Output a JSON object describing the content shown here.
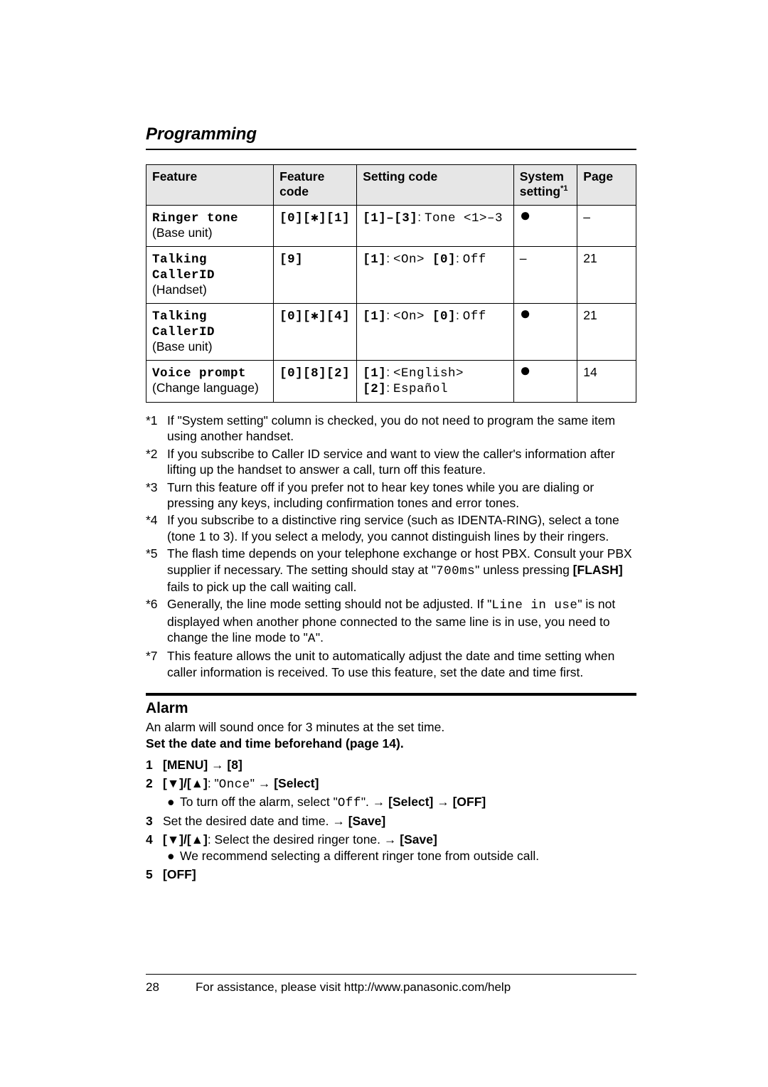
{
  "section_title": "Programming",
  "table": {
    "headers": {
      "feature": "Feature",
      "code": "Feature code",
      "setting": "Setting code",
      "system": "System setting",
      "system_sup": "*1",
      "page": "Page"
    },
    "rows": [
      {
        "feature_mono": "Ringer tone",
        "feature_sub": "(Base unit)",
        "code": "[0][✱][1]",
        "setting_a": "[1]–[3]",
        "setting_b": ": ",
        "setting_c": "Tone <1>–3",
        "system_dot": "●",
        "page": "–"
      },
      {
        "feature_mono": "Talking CallerID",
        "feature_sub": "(Handset)",
        "code": "[9]",
        "setting_a": "[1]",
        "setting_b": ": ",
        "setting_c": "<On>",
        "setting_d": " [0]",
        "setting_e": ": ",
        "setting_f": "Off",
        "system_dot": "–",
        "page": "21"
      },
      {
        "feature_mono": "Talking CallerID",
        "feature_sub": "(Base unit)",
        "code": "[0][✱][4]",
        "setting_a": "[1]",
        "setting_b": ": ",
        "setting_c": "<On>",
        "setting_d": " [0]",
        "setting_e": ": ",
        "setting_f": "Off",
        "system_dot": "●",
        "page": "21"
      },
      {
        "feature_mono": "Voice prompt",
        "feature_sub": "(Change language)",
        "code": "[0][8][2]",
        "setting_line1_a": "[1]",
        "setting_line1_b": ": ",
        "setting_line1_c": "<English>",
        "setting_line2_a": "[2]",
        "setting_line2_b": ": ",
        "setting_line2_c": "Español",
        "system_dot": "●",
        "page": "14"
      }
    ]
  },
  "notes": [
    {
      "num": "*1",
      "text_parts": [
        "If \"System setting\" column is checked, you do not need to program the same item using another handset."
      ]
    },
    {
      "num": "*2",
      "text_parts": [
        "If you subscribe to Caller ID service and want to view the caller's information after lifting up the handset to answer a call, turn off this feature."
      ]
    },
    {
      "num": "*3",
      "text_parts": [
        "Turn this feature off if you prefer not to hear key tones while you are dialing or pressing any keys, including confirmation tones and error tones."
      ]
    },
    {
      "num": "*4",
      "text_parts": [
        "If you subscribe to a distinctive ring service (such as IDENTA-RING), select a tone (tone 1 to 3). If you select a melody, you cannot distinguish lines by their ringers."
      ]
    },
    {
      "num": "*5",
      "text_parts": [
        "The flash time depends on your telephone exchange or host PBX. Consult your PBX supplier if necessary. The setting should stay at \"",
        "700ms",
        "\" unless pressing ",
        "[FLASH]",
        " fails to pick up the call waiting call."
      ]
    },
    {
      "num": "*6",
      "text_parts": [
        "Generally, the line mode setting should not be adjusted. If \"",
        "Line in use",
        "\" is not displayed when another phone connected to the same line is in use, you need to change the line mode to \"",
        "A",
        "\"."
      ]
    },
    {
      "num": "*7",
      "text_parts": [
        "This feature allows the unit to automatically adjust the date and time setting when caller information is received. To use this feature, set the date and time first."
      ]
    }
  ],
  "alarm": {
    "heading": "Alarm",
    "intro": "An alarm will sound once for 3 minutes at the set time.",
    "bold_line": "Set the date and time beforehand (page 14).",
    "steps": {
      "s1": {
        "num": "1",
        "parts": [
          "[MENU]",
          " → ",
          "[8]"
        ]
      },
      "s2": {
        "num": "2",
        "parts": [
          "[▼]/[▲]",
          ": \"",
          "Once",
          "\" → ",
          "[Select]"
        ],
        "sub": [
          "To turn off the alarm, select \"",
          "Off",
          "\". → ",
          "[Select]",
          " → ",
          "[OFF]"
        ]
      },
      "s3": {
        "num": "3",
        "parts": [
          "Set the desired date and time. → ",
          "[Save]"
        ]
      },
      "s4": {
        "num": "4",
        "parts": [
          "[▼]/[▲]",
          ": Select the desired ringer tone. → ",
          "[Save]"
        ],
        "sub": [
          "We recommend selecting a different ringer tone from outside call."
        ]
      },
      "s5": {
        "num": "5",
        "parts": [
          "[OFF]"
        ]
      }
    }
  },
  "footer": {
    "page_num": "28",
    "text": "For assistance, please visit http://www.panasonic.com/help"
  }
}
